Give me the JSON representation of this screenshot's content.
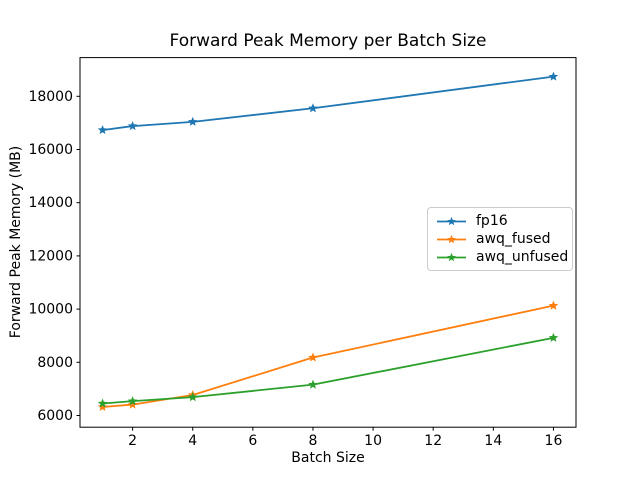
{
  "figure": {
    "background": "#ffffff",
    "axes_frame_color": "#000000"
  },
  "chart_data": {
    "type": "line",
    "title": "Forward Peak Memory per Batch Size",
    "xlabel": "Batch Size",
    "ylabel": "Forward Peak Memory (MB)",
    "x": [
      1,
      2,
      4,
      8,
      16
    ],
    "series": [
      {
        "name": "fp16",
        "color": "#1f77b4",
        "marker": "star",
        "values": [
          16730,
          16880,
          17040,
          17550,
          18740
        ]
      },
      {
        "name": "awq_fused",
        "color": "#ff7f0e",
        "marker": "star",
        "values": [
          6320,
          6410,
          6770,
          8180,
          10130
        ]
      },
      {
        "name": "awq_unfused",
        "color": "#2ca02c",
        "marker": "star",
        "values": [
          6450,
          6540,
          6690,
          7160,
          8920
        ]
      }
    ],
    "xticks": [
      2,
      4,
      6,
      8,
      10,
      12,
      14,
      16
    ],
    "yticks": [
      6000,
      8000,
      10000,
      12000,
      14000,
      16000,
      18000
    ],
    "xlim": [
      0.25,
      16.75
    ],
    "ylim": [
      5560,
      19455
    ],
    "grid": false,
    "legend_position": "center right"
  }
}
